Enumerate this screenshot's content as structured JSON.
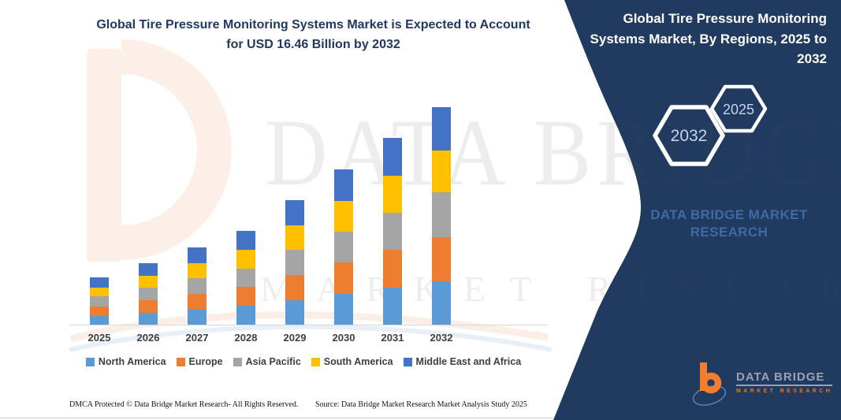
{
  "main_title": {
    "lines": [
      "Global Tire Pressure Monitoring Systems Market is Expected to Account",
      "for USD 16.46 Billion by 2032"
    ]
  },
  "panel": {
    "title_lines": [
      "Global Tire Pressure Monitoring",
      "Systems Market, By Regions, 2025 to",
      "2032"
    ],
    "hexagons": [
      {
        "label": "2032"
      },
      {
        "label": "2025"
      }
    ],
    "brand_lines": [
      "DATA BRIDGE MARKET",
      "RESEARCH"
    ],
    "background_color": "#203a60"
  },
  "chart_data": {
    "type": "bar",
    "stacked": true,
    "title": "Global Tire Pressure Monitoring Systems Market, By Regions, 2025 to 2032",
    "unit": "USD Billion",
    "projection_note": "USD 16.46 Billion by 2032",
    "categories": [
      "2025",
      "2026",
      "2027",
      "2028",
      "2029",
      "2030",
      "2031",
      "2032"
    ],
    "series": [
      {
        "name": "North America",
        "color": "#5B9BD5",
        "values": [
          0.66,
          0.91,
          1.15,
          1.41,
          1.88,
          2.33,
          2.8,
          3.28
        ]
      },
      {
        "name": "Europe",
        "color": "#ED7D31",
        "values": [
          0.74,
          0.93,
          1.17,
          1.43,
          1.89,
          2.36,
          2.84,
          3.34
        ]
      },
      {
        "name": "Asia Pacific",
        "color": "#A5A5A5",
        "values": [
          0.72,
          0.94,
          1.18,
          1.42,
          1.9,
          2.37,
          2.85,
          3.38
        ]
      },
      {
        "name": "South America",
        "color": "#FFC000",
        "values": [
          0.67,
          0.92,
          1.16,
          1.4,
          1.86,
          2.32,
          2.8,
          3.18
        ]
      },
      {
        "name": "Middle East and Africa",
        "color": "#4472C4",
        "values": [
          0.79,
          0.95,
          1.18,
          1.44,
          1.89,
          2.37,
          2.84,
          3.28
        ]
      }
    ],
    "totals": [
      3.58,
      4.65,
      5.84,
      7.1,
      9.42,
      11.75,
      14.13,
      16.46
    ],
    "ylim": [
      0,
      16.46
    ],
    "grid": false,
    "y_axis_shown": false,
    "legend_position": "bottom"
  },
  "watermark": {
    "line1": "DATA BRIDGE",
    "line2": "MARKET RESEARCH"
  },
  "footer": {
    "left": "DMCA Protected © Data Bridge Market Research- All Rights Reserved.",
    "right": "Source: Data Bridge Market Research Market Analysis Study 2025"
  },
  "logo": {
    "brand": "DATA BRIDGE",
    "sub": "MARKET RESEARCH"
  }
}
